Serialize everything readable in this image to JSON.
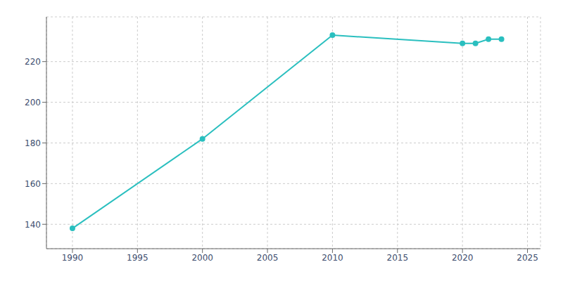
{
  "chart_data": {
    "type": "line",
    "x": [
      1990,
      2000,
      2010,
      2020,
      2021,
      2022,
      2023
    ],
    "values": [
      138,
      182,
      233,
      229,
      229,
      231,
      231
    ],
    "color": "#2abfbf",
    "marker": "circle",
    "xlim": [
      1988,
      2026
    ],
    "ylim": [
      128,
      242
    ],
    "xticks": [
      1990,
      1995,
      2000,
      2005,
      2010,
      2015,
      2020,
      2025
    ],
    "yticks": [
      140,
      160,
      180,
      200,
      220
    ],
    "grid": true
  }
}
